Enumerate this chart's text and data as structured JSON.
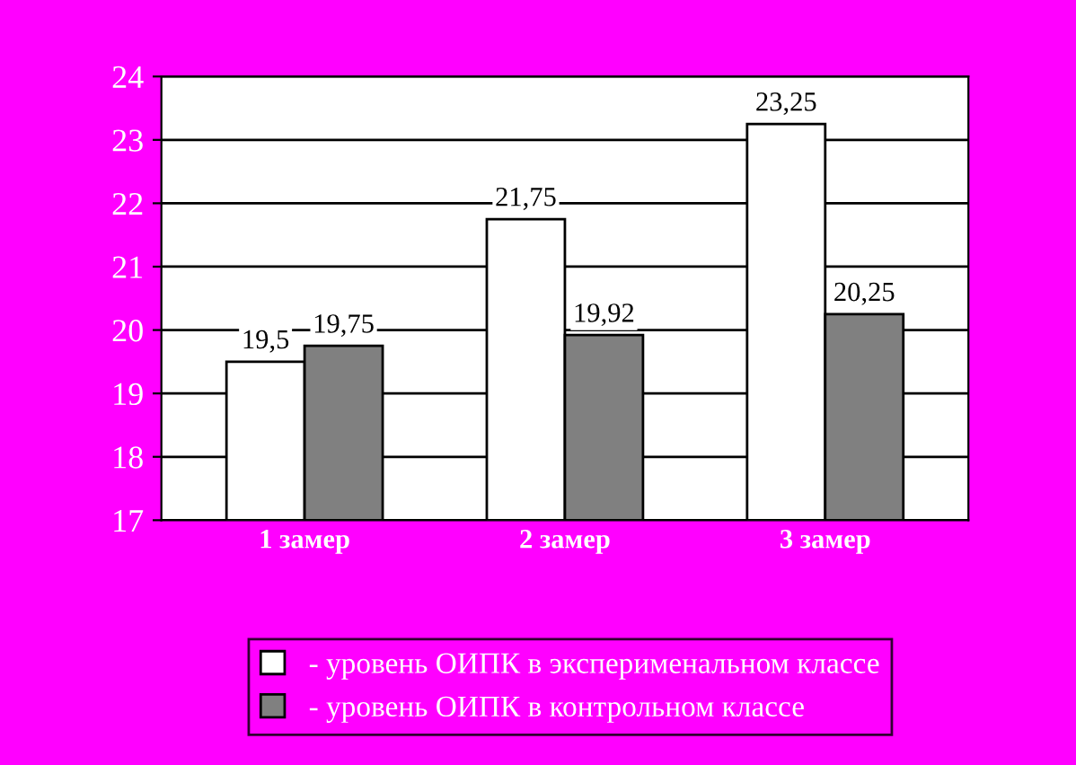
{
  "chart_data": {
    "type": "bar",
    "categories": [
      "1 замер",
      "2 замер",
      "3 замер"
    ],
    "series": [
      {
        "name": "- уровень ОИПК в эксперименальном классе",
        "color": "#ffffff",
        "values": [
          19.5,
          21.75,
          23.25
        ],
        "value_labels": [
          "19,5",
          "21,75",
          "23,25"
        ]
      },
      {
        "name": "- уровень ОИПК в контрольном классе",
        "color": "#808080",
        "values": [
          19.75,
          19.92,
          20.25
        ],
        "value_labels": [
          "19,75",
          "19,92",
          "20,25"
        ]
      }
    ],
    "ylim": [
      17,
      24
    ],
    "yticks": [
      17,
      18,
      19,
      20,
      21,
      22,
      23,
      24
    ],
    "grid": "y",
    "legend": "bottom"
  }
}
